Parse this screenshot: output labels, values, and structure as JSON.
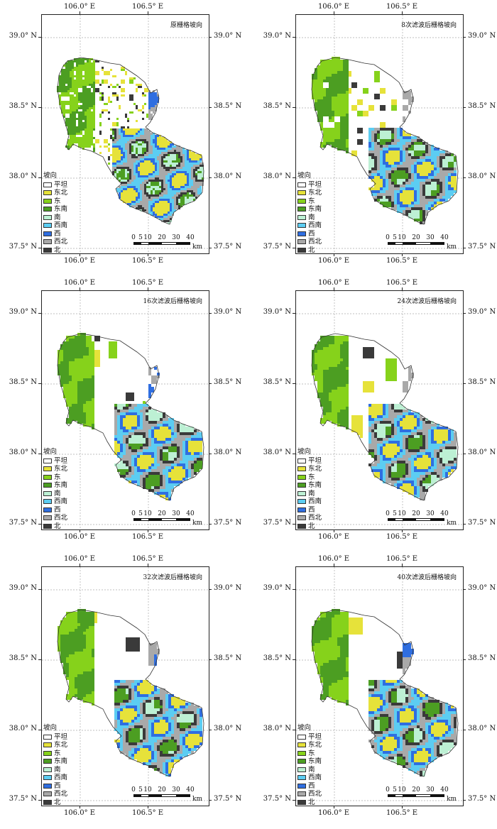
{
  "axes": {
    "lat_labels": [
      "39.0° N",
      "38.5° N",
      "38.0° N",
      "37.5° N"
    ],
    "lon_labels": [
      "106.0° E",
      "106.5° E"
    ]
  },
  "legend": {
    "title": "坡向",
    "items": [
      {
        "label": "平坦",
        "color": "#ffffff"
      },
      {
        "label": "东北",
        "color": "#e6e23a"
      },
      {
        "label": "东",
        "color": "#86d21b"
      },
      {
        "label": "东南",
        "color": "#4c9e22"
      },
      {
        "label": "南",
        "color": "#bdf0d4"
      },
      {
        "label": "西南",
        "color": "#5ccdf2"
      },
      {
        "label": "西",
        "color": "#2f6ee0"
      },
      {
        "label": "西北",
        "color": "#a9a9a9"
      },
      {
        "label": "北",
        "color": "#3a3a3a"
      }
    ]
  },
  "scale": {
    "ticks": [
      "0",
      "5",
      "10",
      "20",
      "30",
      "40"
    ],
    "unit": "km"
  },
  "panels": [
    {
      "title": "原栅格坡向"
    },
    {
      "title": "8次滤波后栅格坡向"
    },
    {
      "title": "16次滤波后栅格坡向"
    },
    {
      "title": "24次滤波后栅格坡向"
    },
    {
      "title": "32次滤波后栅格坡向"
    },
    {
      "title": "40次滤波后栅格坡向"
    }
  ]
}
